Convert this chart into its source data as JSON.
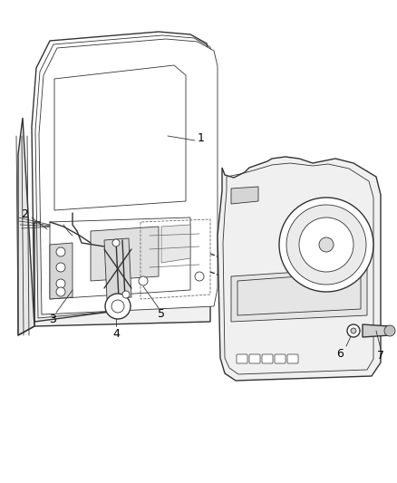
{
  "background_color": "#ffffff",
  "line_color": "#333333",
  "line_color_light": "#666666",
  "label_color": "#000000",
  "fig_width": 4.38,
  "fig_height": 5.33,
  "dpi": 100,
  "label_fontsize": 9
}
